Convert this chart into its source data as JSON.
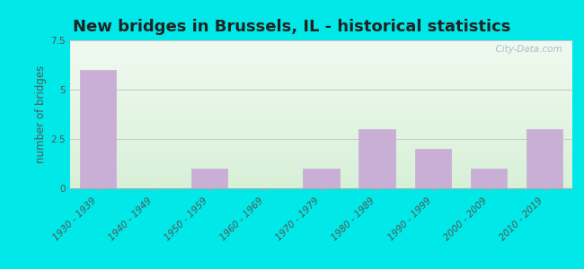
{
  "title": "New bridges in Brussels, IL - historical statistics",
  "categories": [
    "1930 - 1939",
    "1940 - 1949",
    "1950 - 1959",
    "1960 - 1969",
    "1970 - 1979",
    "1980 - 1989",
    "1990 - 1999",
    "2000 - 2009",
    "2010 - 2019"
  ],
  "values": [
    6,
    0,
    1,
    0,
    1,
    3,
    2,
    1,
    3
  ],
  "bar_color": "#c9aed6",
  "bar_edge_color": "#c9aed6",
  "ylabel": "number of bridges",
  "ylim": [
    0,
    7.5
  ],
  "yticks": [
    0,
    2.5,
    5,
    7.5
  ],
  "outer_bg": "#00e8e8",
  "inner_bg_top": "#f0faf0",
  "inner_bg_bottom": "#d8f0d8",
  "title_fontsize": 13,
  "tick_fontsize": 7.5,
  "ylabel_fontsize": 8.5,
  "watermark": "  City-Data.com",
  "grid_color": "#c8c8c8",
  "spine_color": "#aaaaaa",
  "tick_color": "#888888",
  "title_color": "#222222",
  "label_color": "#555555"
}
